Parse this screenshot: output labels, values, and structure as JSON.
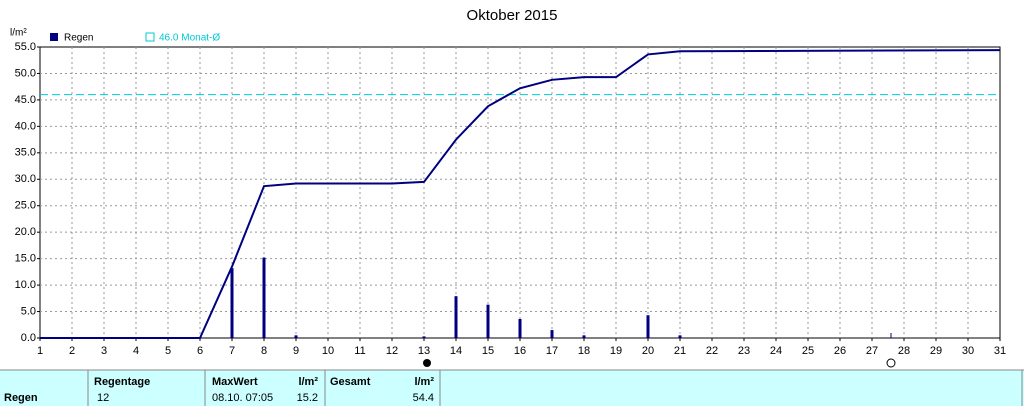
{
  "chart_data": {
    "type": "bar",
    "title": "Oktober 2015",
    "y_label": "l/m²",
    "xlim": [
      1,
      31
    ],
    "xticks": [
      1,
      2,
      3,
      4,
      5,
      6,
      7,
      8,
      9,
      10,
      11,
      12,
      13,
      14,
      15,
      16,
      17,
      18,
      19,
      20,
      21,
      22,
      23,
      24,
      25,
      26,
      27,
      28,
      29,
      30,
      31
    ],
    "ylim": [
      0,
      55
    ],
    "yticks": [
      {
        "value": 0,
        "label": "0.0"
      },
      {
        "value": 5,
        "label": "5.0"
      },
      {
        "value": 10,
        "label": "10.0"
      },
      {
        "value": 15,
        "label": "15.0"
      },
      {
        "value": 20,
        "label": "20.0"
      },
      {
        "value": 25,
        "label": "25.0"
      },
      {
        "value": 30,
        "label": "30.0"
      },
      {
        "value": 35,
        "label": "35.0"
      },
      {
        "value": 40,
        "label": "40.0"
      },
      {
        "value": 45,
        "label": "45.0"
      },
      {
        "value": 50,
        "label": "50.0"
      },
      {
        "value": 55,
        "label": "55.0"
      }
    ],
    "grid": true,
    "series": [
      {
        "name": "Regen",
        "color": "#000080",
        "x": [
          7,
          8,
          9,
          13,
          14,
          15,
          16,
          17,
          18,
          20,
          21
        ],
        "values": [
          13.2,
          15.2,
          0.5,
          0.3,
          7.9,
          6.3,
          3.6,
          1.5,
          0.5,
          4.3,
          0.5
        ]
      },
      {
        "type": "line",
        "color": "#000080",
        "x": [
          1,
          6,
          7,
          8,
          9,
          12,
          13,
          14,
          15,
          16,
          17,
          18,
          19,
          20,
          21,
          31
        ],
        "values": [
          0,
          0,
          13.5,
          28.7,
          29.2,
          29.2,
          29.5,
          37.5,
          43.8,
          47.2,
          48.8,
          49.3,
          49.3,
          53.6,
          54.2,
          54.4
        ]
      }
    ],
    "reference_line": {
      "value": 46.0,
      "label": "46.0 Monat-Ø",
      "color": "#00c8d8"
    }
  },
  "table": {
    "row_label": "Regen",
    "headers": [
      "Regentage",
      "MaxWert",
      "l/m²",
      "Gesamt",
      "l/m²"
    ],
    "values": [
      "12",
      "08.10. 07:05",
      "15.2",
      "",
      "54.4"
    ]
  }
}
